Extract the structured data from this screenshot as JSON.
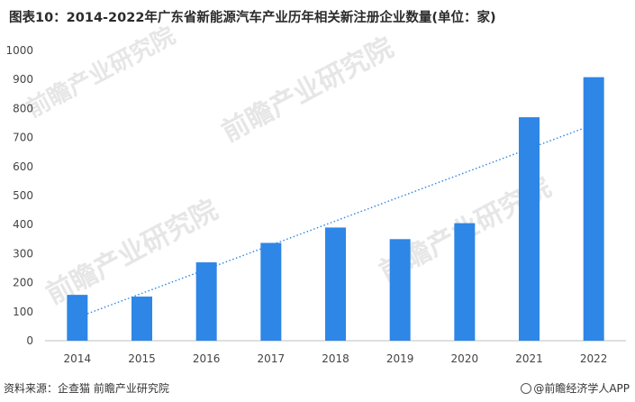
{
  "title": "图表10：2014-2022年广东省新能源汽车产业历年相关新注册企业数量(单位：家)",
  "source": "资料来源：企查猫 前瞻产业研究院",
  "brand": "@前瞻经济学人APP",
  "watermarks": [
    "前瞻产业研究院",
    "前瞻产业研究院",
    "前瞻产业研究院",
    "前瞻产业研究院"
  ],
  "chart_data": {
    "type": "bar",
    "categories": [
      "2014",
      "2015",
      "2016",
      "2017",
      "2018",
      "2019",
      "2020",
      "2021",
      "2022"
    ],
    "values": [
      158,
      152,
      270,
      337,
      390,
      350,
      405,
      770,
      908
    ],
    "ylim": [
      0,
      1000
    ],
    "yticks": [
      0,
      100,
      200,
      300,
      400,
      500,
      600,
      700,
      800,
      900,
      1000
    ],
    "trendline": {
      "style": "dotted",
      "type": "linear",
      "from": 80,
      "to": 745
    },
    "bar_color": "#2e86e6",
    "trend_color": "#2e86e6",
    "grid": false
  }
}
